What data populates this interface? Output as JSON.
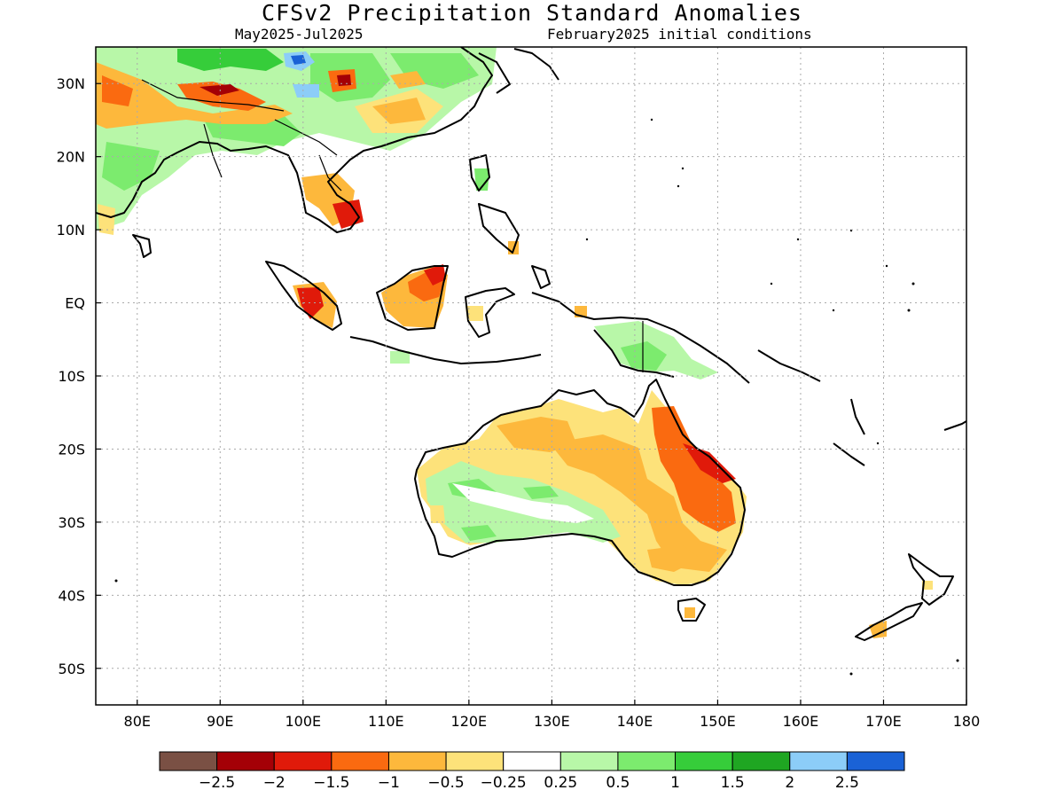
{
  "title": "CFSv2 Precipitation Standard Anomalies",
  "subtitle_left": "May2025-Jul2025",
  "subtitle_right": "February2025 initial conditions",
  "map": {
    "lon_range": [
      75,
      180
    ],
    "lat_range": [
      -55,
      35
    ],
    "lat_labels": [
      "30N",
      "20N",
      "10N",
      "EQ",
      "10S",
      "20S",
      "30S",
      "40S",
      "50S"
    ],
    "lon_labels": [
      "80E",
      "90E",
      "100E",
      "110E",
      "120E",
      "130E",
      "140E",
      "150E",
      "160E",
      "170E",
      "180"
    ],
    "grid": "dotted"
  },
  "colorbar": {
    "colors": [
      "#7a5044",
      "#a40006",
      "#e01a0a",
      "#fa6a10",
      "#fdb83c",
      "#fde27a",
      "#ffffff",
      "#b8f7a8",
      "#7ceb6e",
      "#36cd3a",
      "#1fa622",
      "#8ccdf8",
      "#1a62d6"
    ],
    "labels": [
      "-2.5",
      "-2",
      "-1.5",
      "-1",
      "-0.5",
      "-0.25",
      "0.25",
      "0.5",
      "1",
      "1.5",
      "2",
      "2.5"
    ]
  }
}
